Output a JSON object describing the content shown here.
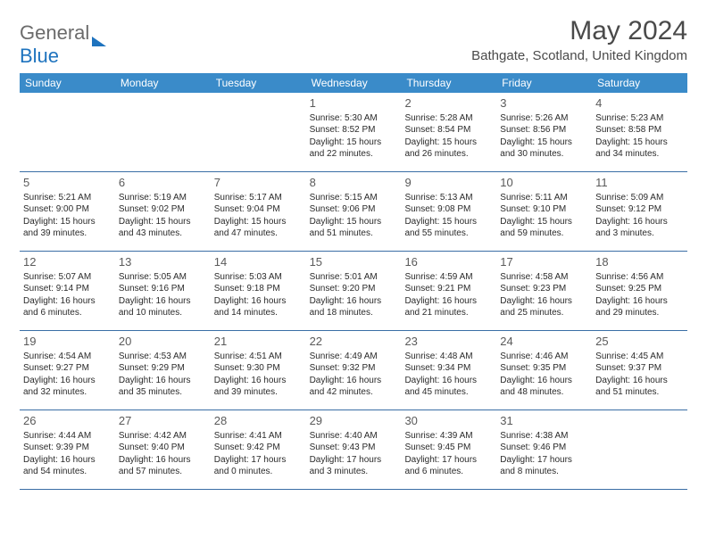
{
  "logo": {
    "text1": "General",
    "text2": "Blue"
  },
  "title": "May 2024",
  "location": "Bathgate, Scotland, United Kingdom",
  "colors": {
    "header_bg": "#3a8bc9",
    "header_text": "#ffffff",
    "divider": "#3a6ea5",
    "logo_gray": "#6b6b6b",
    "logo_blue": "#1e73be",
    "title_color": "#4a4a4a"
  },
  "day_names": [
    "Sunday",
    "Monday",
    "Tuesday",
    "Wednesday",
    "Thursday",
    "Friday",
    "Saturday"
  ],
  "weeks": [
    [
      {
        "n": "",
        "sr": "",
        "ss": "",
        "dl": ""
      },
      {
        "n": "",
        "sr": "",
        "ss": "",
        "dl": ""
      },
      {
        "n": "",
        "sr": "",
        "ss": "",
        "dl": ""
      },
      {
        "n": "1",
        "sr": "Sunrise: 5:30 AM",
        "ss": "Sunset: 8:52 PM",
        "dl": "Daylight: 15 hours and 22 minutes."
      },
      {
        "n": "2",
        "sr": "Sunrise: 5:28 AM",
        "ss": "Sunset: 8:54 PM",
        "dl": "Daylight: 15 hours and 26 minutes."
      },
      {
        "n": "3",
        "sr": "Sunrise: 5:26 AM",
        "ss": "Sunset: 8:56 PM",
        "dl": "Daylight: 15 hours and 30 minutes."
      },
      {
        "n": "4",
        "sr": "Sunrise: 5:23 AM",
        "ss": "Sunset: 8:58 PM",
        "dl": "Daylight: 15 hours and 34 minutes."
      }
    ],
    [
      {
        "n": "5",
        "sr": "Sunrise: 5:21 AM",
        "ss": "Sunset: 9:00 PM",
        "dl": "Daylight: 15 hours and 39 minutes."
      },
      {
        "n": "6",
        "sr": "Sunrise: 5:19 AM",
        "ss": "Sunset: 9:02 PM",
        "dl": "Daylight: 15 hours and 43 minutes."
      },
      {
        "n": "7",
        "sr": "Sunrise: 5:17 AM",
        "ss": "Sunset: 9:04 PM",
        "dl": "Daylight: 15 hours and 47 minutes."
      },
      {
        "n": "8",
        "sr": "Sunrise: 5:15 AM",
        "ss": "Sunset: 9:06 PM",
        "dl": "Daylight: 15 hours and 51 minutes."
      },
      {
        "n": "9",
        "sr": "Sunrise: 5:13 AM",
        "ss": "Sunset: 9:08 PM",
        "dl": "Daylight: 15 hours and 55 minutes."
      },
      {
        "n": "10",
        "sr": "Sunrise: 5:11 AM",
        "ss": "Sunset: 9:10 PM",
        "dl": "Daylight: 15 hours and 59 minutes."
      },
      {
        "n": "11",
        "sr": "Sunrise: 5:09 AM",
        "ss": "Sunset: 9:12 PM",
        "dl": "Daylight: 16 hours and 3 minutes."
      }
    ],
    [
      {
        "n": "12",
        "sr": "Sunrise: 5:07 AM",
        "ss": "Sunset: 9:14 PM",
        "dl": "Daylight: 16 hours and 6 minutes."
      },
      {
        "n": "13",
        "sr": "Sunrise: 5:05 AM",
        "ss": "Sunset: 9:16 PM",
        "dl": "Daylight: 16 hours and 10 minutes."
      },
      {
        "n": "14",
        "sr": "Sunrise: 5:03 AM",
        "ss": "Sunset: 9:18 PM",
        "dl": "Daylight: 16 hours and 14 minutes."
      },
      {
        "n": "15",
        "sr": "Sunrise: 5:01 AM",
        "ss": "Sunset: 9:20 PM",
        "dl": "Daylight: 16 hours and 18 minutes."
      },
      {
        "n": "16",
        "sr": "Sunrise: 4:59 AM",
        "ss": "Sunset: 9:21 PM",
        "dl": "Daylight: 16 hours and 21 minutes."
      },
      {
        "n": "17",
        "sr": "Sunrise: 4:58 AM",
        "ss": "Sunset: 9:23 PM",
        "dl": "Daylight: 16 hours and 25 minutes."
      },
      {
        "n": "18",
        "sr": "Sunrise: 4:56 AM",
        "ss": "Sunset: 9:25 PM",
        "dl": "Daylight: 16 hours and 29 minutes."
      }
    ],
    [
      {
        "n": "19",
        "sr": "Sunrise: 4:54 AM",
        "ss": "Sunset: 9:27 PM",
        "dl": "Daylight: 16 hours and 32 minutes."
      },
      {
        "n": "20",
        "sr": "Sunrise: 4:53 AM",
        "ss": "Sunset: 9:29 PM",
        "dl": "Daylight: 16 hours and 35 minutes."
      },
      {
        "n": "21",
        "sr": "Sunrise: 4:51 AM",
        "ss": "Sunset: 9:30 PM",
        "dl": "Daylight: 16 hours and 39 minutes."
      },
      {
        "n": "22",
        "sr": "Sunrise: 4:49 AM",
        "ss": "Sunset: 9:32 PM",
        "dl": "Daylight: 16 hours and 42 minutes."
      },
      {
        "n": "23",
        "sr": "Sunrise: 4:48 AM",
        "ss": "Sunset: 9:34 PM",
        "dl": "Daylight: 16 hours and 45 minutes."
      },
      {
        "n": "24",
        "sr": "Sunrise: 4:46 AM",
        "ss": "Sunset: 9:35 PM",
        "dl": "Daylight: 16 hours and 48 minutes."
      },
      {
        "n": "25",
        "sr": "Sunrise: 4:45 AM",
        "ss": "Sunset: 9:37 PM",
        "dl": "Daylight: 16 hours and 51 minutes."
      }
    ],
    [
      {
        "n": "26",
        "sr": "Sunrise: 4:44 AM",
        "ss": "Sunset: 9:39 PM",
        "dl": "Daylight: 16 hours and 54 minutes."
      },
      {
        "n": "27",
        "sr": "Sunrise: 4:42 AM",
        "ss": "Sunset: 9:40 PM",
        "dl": "Daylight: 16 hours and 57 minutes."
      },
      {
        "n": "28",
        "sr": "Sunrise: 4:41 AM",
        "ss": "Sunset: 9:42 PM",
        "dl": "Daylight: 17 hours and 0 minutes."
      },
      {
        "n": "29",
        "sr": "Sunrise: 4:40 AM",
        "ss": "Sunset: 9:43 PM",
        "dl": "Daylight: 17 hours and 3 minutes."
      },
      {
        "n": "30",
        "sr": "Sunrise: 4:39 AM",
        "ss": "Sunset: 9:45 PM",
        "dl": "Daylight: 17 hours and 6 minutes."
      },
      {
        "n": "31",
        "sr": "Sunrise: 4:38 AM",
        "ss": "Sunset: 9:46 PM",
        "dl": "Daylight: 17 hours and 8 minutes."
      },
      {
        "n": "",
        "sr": "",
        "ss": "",
        "dl": ""
      }
    ]
  ]
}
